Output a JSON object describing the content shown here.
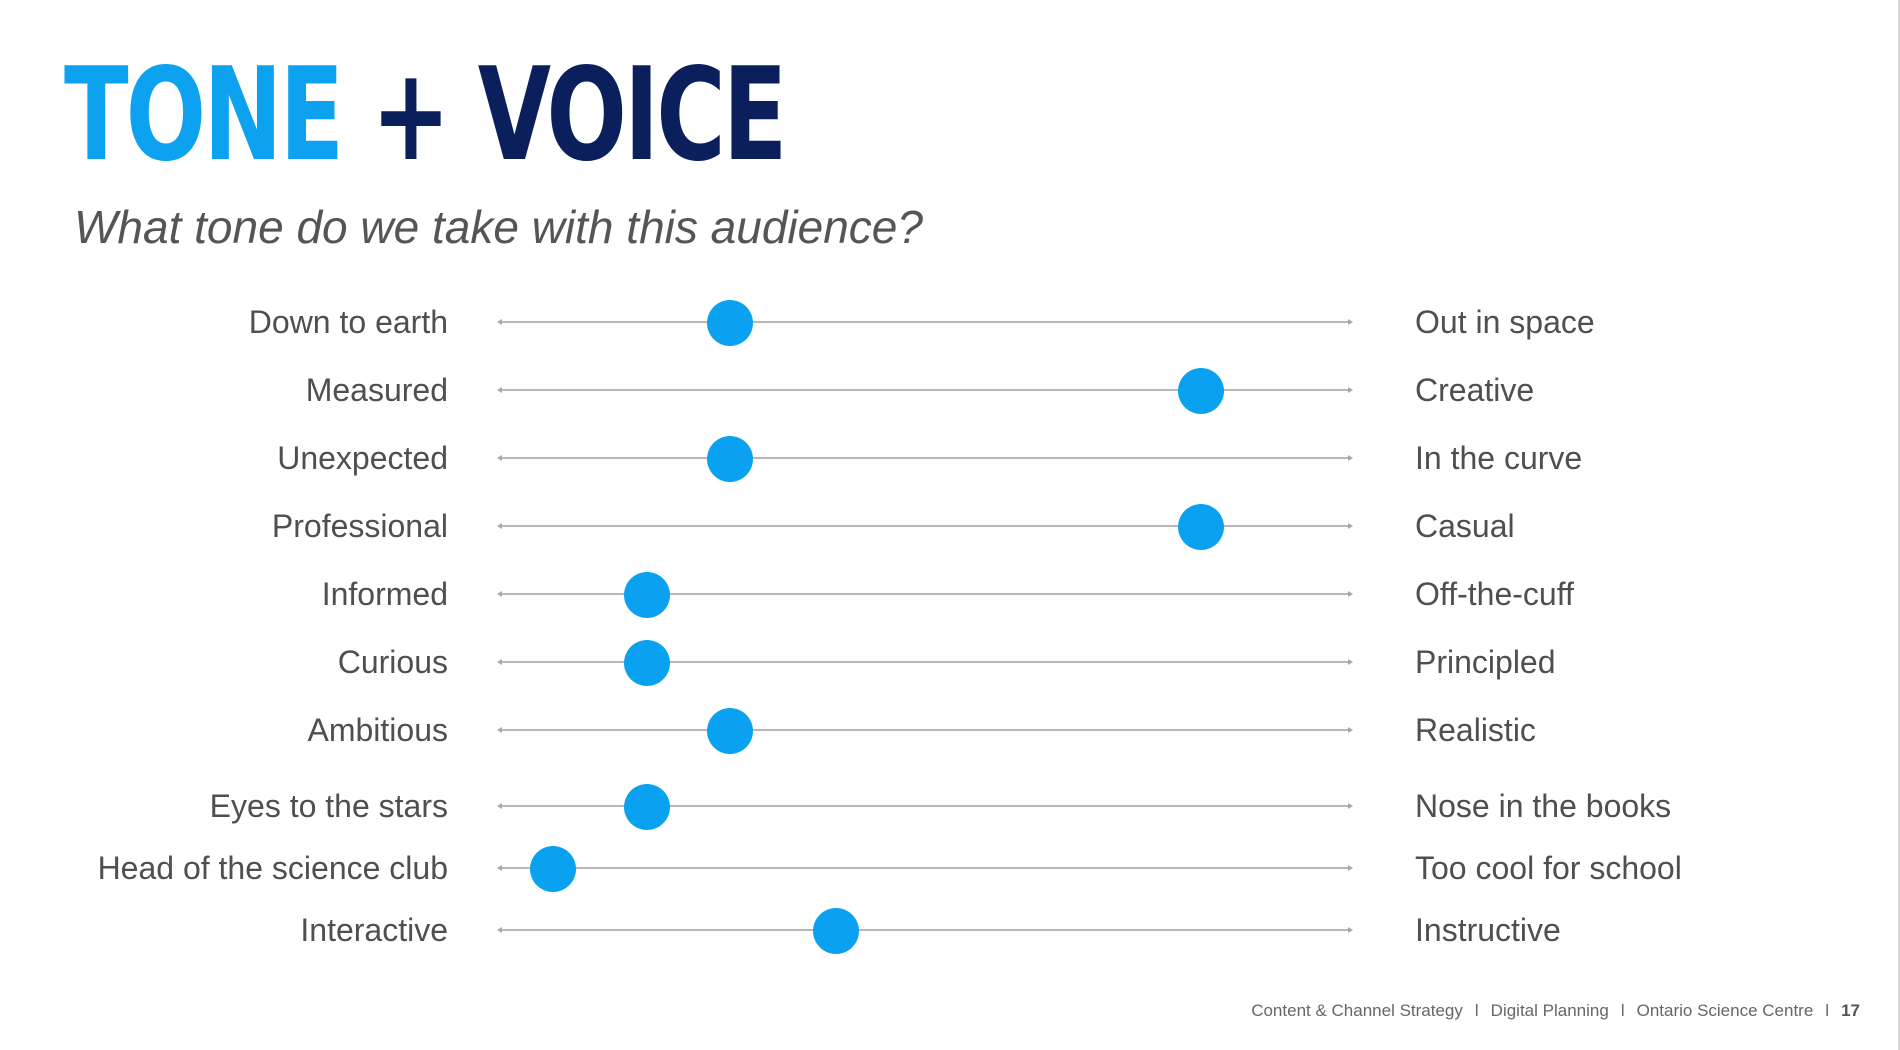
{
  "title": {
    "word1": "TONE",
    "plus": "+",
    "word2": "VOICE"
  },
  "subtitle": "What tone do we take with this audience?",
  "colors": {
    "accent_light": "#0da2ef",
    "accent_dark": "#0a1f5c",
    "dot": "#0aa2f0",
    "text": "#4f4f4f"
  },
  "scales": [
    {
      "left": "Down to earth",
      "right": "Out in space",
      "position": 0.27
    },
    {
      "left": "Measured",
      "right": "Creative",
      "position": 0.825
    },
    {
      "left": "Unexpected",
      "right": "In the curve",
      "position": 0.27
    },
    {
      "left": "Professional",
      "right": "Casual",
      "position": 0.825
    },
    {
      "left": "Informed",
      "right": "Off-the-cuff",
      "position": 0.173
    },
    {
      "left": "Curious",
      "right": "Principled",
      "position": 0.173
    },
    {
      "left": "Ambitious",
      "right": "Realistic",
      "position": 0.27
    },
    {
      "left": "Eyes to the stars",
      "right": "Nose in the books",
      "position": 0.173
    },
    {
      "left": "Head of the science club",
      "right": "Too cool for school",
      "position": 0.062
    },
    {
      "left": "Interactive",
      "right": "Instructive",
      "position": 0.395
    }
  ],
  "footer": {
    "section": "Content & Channel Strategy",
    "separator": "l",
    "topic": "Digital Planning",
    "organization": "Ontario Science Centre",
    "page_number": "17"
  }
}
